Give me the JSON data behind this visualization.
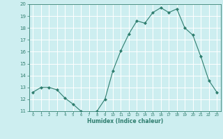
{
  "x": [
    0,
    1,
    2,
    3,
    4,
    5,
    6,
    7,
    8,
    9,
    10,
    11,
    12,
    13,
    14,
    15,
    16,
    17,
    18,
    19,
    20,
    21,
    22,
    23
  ],
  "y": [
    12.6,
    13.0,
    13.0,
    12.8,
    12.1,
    11.6,
    11.0,
    10.8,
    11.0,
    12.0,
    14.4,
    16.1,
    17.5,
    18.6,
    18.4,
    19.3,
    19.7,
    19.3,
    19.6,
    18.0,
    17.4,
    15.6,
    13.6,
    12.6
  ],
  "line_color": "#2e7d6e",
  "marker": "D",
  "marker_size": 2,
  "bg_color": "#cdeef0",
  "grid_color": "#ffffff",
  "xlabel": "Humidex (Indice chaleur)",
  "xlim": [
    -0.5,
    23.5
  ],
  "ylim": [
    11,
    20
  ],
  "yticks": [
    11,
    12,
    13,
    14,
    15,
    16,
    17,
    18,
    19,
    20
  ],
  "xticks": [
    0,
    1,
    2,
    3,
    4,
    5,
    6,
    7,
    8,
    9,
    10,
    11,
    12,
    13,
    14,
    15,
    16,
    17,
    18,
    19,
    20,
    21,
    22,
    23
  ]
}
